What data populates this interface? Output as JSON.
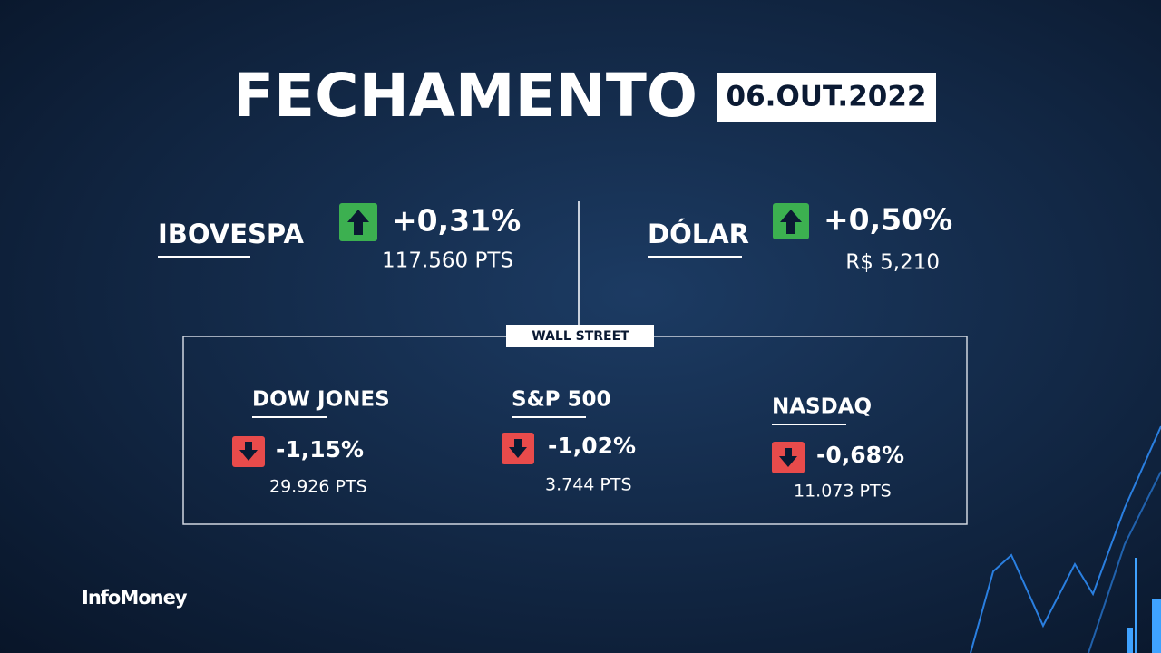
{
  "header": {
    "title": "FECHAMENTO",
    "date": "06.OUT.2022"
  },
  "main": [
    {
      "name": "IBOVESPA",
      "change": "+0,31%",
      "value": "117.560 PTS"
    },
    {
      "name": "DÓLAR",
      "change": "+0,50%",
      "value": "R$ 5,210"
    }
  ],
  "wall_street": {
    "label": "WALL STREET",
    "indices": [
      {
        "name": "DOW JONES",
        "change": "-1,15%",
        "value": "29.926 PTS"
      },
      {
        "name": "S&P 500",
        "change": "-1,02%",
        "value": "3.744 PTS"
      },
      {
        "name": "NASDAQ",
        "change": "-0,68%",
        "value": "11.073 PTS"
      }
    ]
  },
  "brand": "InfoMoney"
}
